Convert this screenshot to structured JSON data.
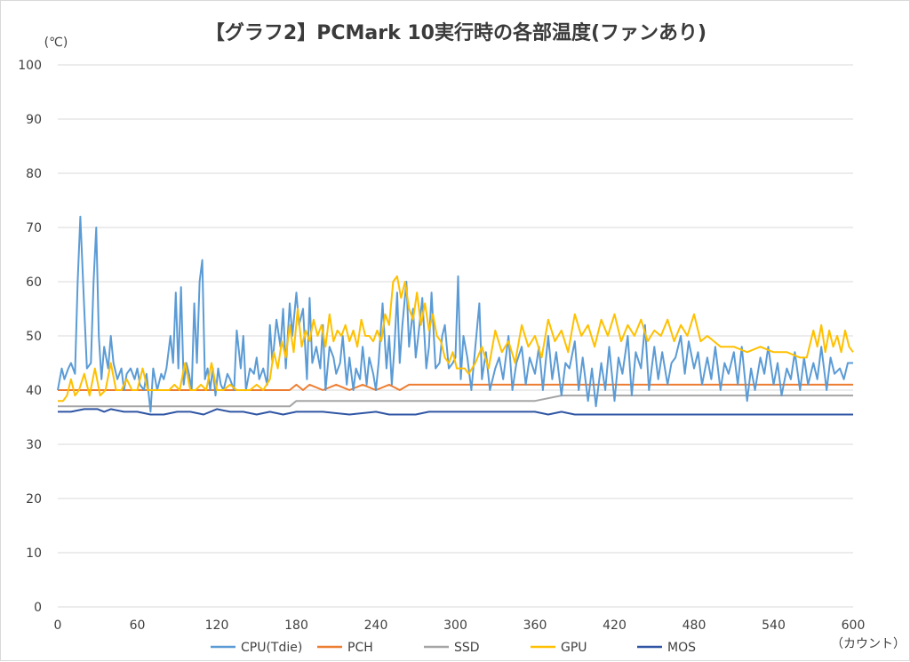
{
  "chart_data": {
    "type": "line",
    "title": "【グラフ2】PCMark 10実行時の各部温度(ファンあり)",
    "ylabel": "(℃)",
    "xlabel": "（カウント）",
    "ylim": [
      0,
      100
    ],
    "xlim": [
      0,
      600
    ],
    "y_ticks": [
      0,
      10,
      20,
      30,
      40,
      50,
      60,
      70,
      80,
      90,
      100
    ],
    "x_ticks": [
      0,
      60,
      120,
      180,
      240,
      300,
      360,
      420,
      480,
      540,
      600
    ],
    "grid": "horizontal",
    "legend_position": "bottom",
    "series": [
      {
        "name": "CPU(Tdie)",
        "color": "#5b9bd5",
        "x": [
          0,
          3,
          5,
          8,
          10,
          13,
          15,
          17,
          20,
          22,
          25,
          27,
          29,
          31,
          33,
          35,
          38,
          40,
          42,
          45,
          48,
          50,
          52,
          55,
          58,
          60,
          62,
          65,
          67,
          70,
          72,
          75,
          78,
          80,
          82,
          85,
          87,
          89,
          91,
          93,
          95,
          97,
          99,
          101,
          103,
          105,
          107,
          109,
          111,
          113,
          115,
          117,
          119,
          121,
          123,
          125,
          128,
          130,
          133,
          135,
          138,
          140,
          142,
          145,
          148,
          150,
          152,
          155,
          158,
          160,
          162,
          165,
          168,
          170,
          172,
          175,
          177,
          180,
          182,
          185,
          188,
          190,
          192,
          195,
          198,
          200,
          202,
          205,
          208,
          210,
          213,
          215,
          218,
          220,
          223,
          225,
          228,
          230,
          233,
          235,
          238,
          240,
          242,
          245,
          248,
          250,
          252,
          254,
          256,
          258,
          260,
          263,
          265,
          268,
          270,
          272,
          275,
          278,
          280,
          282,
          285,
          288,
          290,
          292,
          295,
          298,
          300,
          302,
          304,
          306,
          309,
          312,
          315,
          318,
          320,
          323,
          326,
          330,
          333,
          336,
          340,
          343,
          346,
          350,
          353,
          356,
          360,
          363,
          366,
          370,
          373,
          376,
          380,
          383,
          386,
          390,
          393,
          396,
          400,
          403,
          406,
          410,
          413,
          416,
          420,
          423,
          426,
          430,
          433,
          436,
          440,
          443,
          446,
          450,
          453,
          456,
          460,
          463,
          466,
          470,
          473,
          476,
          480,
          483,
          486,
          490,
          493,
          496,
          500,
          503,
          506,
          510,
          513,
          516,
          520,
          523,
          526,
          530,
          533,
          536,
          540,
          543,
          546,
          550,
          553,
          556,
          560,
          563,
          566,
          570,
          573,
          576,
          580,
          583,
          586,
          590,
          593,
          596,
          600
        ],
        "values": [
          40,
          44,
          42,
          44,
          45,
          43,
          60,
          72,
          55,
          44,
          45,
          60,
          70,
          50,
          42,
          48,
          44,
          50,
          45,
          42,
          44,
          40,
          43,
          44,
          42,
          44,
          41,
          40,
          43,
          36,
          44,
          40,
          43,
          42,
          44,
          50,
          45,
          58,
          44,
          59,
          41,
          45,
          43,
          40,
          56,
          45,
          60,
          64,
          42,
          44,
          40,
          44,
          39,
          44,
          41,
          40,
          43,
          42,
          40,
          51,
          44,
          50,
          40,
          44,
          43,
          46,
          42,
          44,
          41,
          52,
          45,
          53,
          48,
          55,
          44,
          56,
          50,
          58,
          52,
          55,
          42,
          57,
          45,
          48,
          44,
          52,
          40,
          48,
          46,
          43,
          45,
          50,
          41,
          46,
          40,
          44,
          42,
          48,
          41,
          46,
          43,
          40,
          45,
          56,
          44,
          50,
          41,
          48,
          58,
          45,
          52,
          60,
          48,
          55,
          46,
          50,
          57,
          44,
          48,
          58,
          44,
          45,
          50,
          52,
          44,
          45,
          46,
          61,
          42,
          50,
          46,
          40,
          48,
          56,
          42,
          47,
          40,
          44,
          46,
          42,
          50,
          40,
          45,
          48,
          41,
          46,
          43,
          48,
          40,
          50,
          42,
          47,
          39,
          45,
          44,
          49,
          40,
          46,
          38,
          44,
          37,
          45,
          40,
          48,
          38,
          46,
          43,
          50,
          39,
          47,
          44,
          52,
          40,
          48,
          42,
          47,
          41,
          45,
          46,
          50,
          43,
          49,
          44,
          47,
          41,
          46,
          42,
          48,
          40,
          45,
          43,
          47,
          41,
          48,
          38,
          44,
          40,
          46,
          43,
          48,
          41,
          45,
          39,
          44,
          42,
          47,
          40,
          46,
          41,
          45,
          42,
          48,
          40,
          46,
          43,
          44,
          42,
          45,
          45
        ]
      },
      {
        "name": "PCH",
        "color": "#ed7d31",
        "x": [
          0,
          60,
          120,
          160,
          175,
          180,
          185,
          190,
          200,
          210,
          220,
          230,
          240,
          250,
          258,
          265,
          300,
          360,
          420,
          480,
          540,
          600
        ],
        "values": [
          40,
          40,
          40,
          40,
          40,
          41,
          40,
          41,
          40,
          41,
          40,
          41,
          40,
          41,
          40,
          41,
          41,
          41,
          41,
          41,
          41,
          41
        ]
      },
      {
        "name": "SSD",
        "color": "#a5a5a5",
        "x": [
          0,
          60,
          120,
          130,
          140,
          175,
          180,
          240,
          260,
          300,
          320,
          360,
          380,
          420,
          480,
          540,
          600
        ],
        "values": [
          37,
          37,
          37,
          37,
          37,
          37,
          38,
          38,
          38,
          38,
          38,
          38,
          39,
          39,
          39,
          39,
          39
        ]
      },
      {
        "name": "GPU",
        "color": "#ffc000",
        "x": [
          0,
          4,
          7,
          10,
          13,
          16,
          20,
          24,
          28,
          32,
          36,
          40,
          44,
          48,
          52,
          56,
          60,
          64,
          68,
          72,
          76,
          80,
          84,
          88,
          92,
          96,
          100,
          104,
          108,
          112,
          116,
          120,
          125,
          130,
          135,
          140,
          145,
          150,
          155,
          160,
          163,
          166,
          169,
          172,
          175,
          178,
          181,
          184,
          187,
          190,
          193,
          196,
          199,
          202,
          205,
          208,
          211,
          214,
          217,
          220,
          223,
          226,
          229,
          232,
          235,
          238,
          241,
          244,
          247,
          250,
          253,
          256,
          259,
          262,
          265,
          268,
          271,
          274,
          277,
          280,
          283,
          286,
          289,
          292,
          295,
          298,
          301,
          304,
          307,
          310,
          315,
          320,
          325,
          330,
          335,
          340,
          345,
          350,
          355,
          360,
          365,
          370,
          375,
          380,
          385,
          390,
          395,
          400,
          405,
          410,
          415,
          420,
          425,
          430,
          435,
          440,
          445,
          450,
          455,
          460,
          465,
          470,
          475,
          480,
          485,
          490,
          495,
          500,
          510,
          520,
          530,
          540,
          550,
          560,
          565,
          570,
          573,
          576,
          579,
          582,
          585,
          588,
          591,
          594,
          597,
          600
        ],
        "values": [
          38,
          38,
          39,
          42,
          39,
          40,
          43,
          39,
          44,
          39,
          40,
          45,
          40,
          40,
          42,
          40,
          40,
          44,
          40,
          40,
          40,
          40,
          40,
          41,
          40,
          45,
          40,
          40,
          41,
          40,
          45,
          40,
          40,
          41,
          40,
          40,
          40,
          41,
          40,
          42,
          47,
          44,
          49,
          46,
          52,
          47,
          55,
          48,
          51,
          49,
          53,
          50,
          52,
          48,
          54,
          49,
          51,
          50,
          52,
          49,
          51,
          48,
          53,
          50,
          50,
          49,
          51,
          49,
          54,
          52,
          60,
          61,
          57,
          60,
          55,
          53,
          58,
          52,
          56,
          51,
          54,
          50,
          49,
          46,
          45,
          47,
          44,
          44,
          44,
          43,
          45,
          48,
          44,
          51,
          47,
          49,
          45,
          52,
          48,
          50,
          46,
          53,
          49,
          51,
          47,
          54,
          50,
          52,
          48,
          53,
          50,
          54,
          49,
          52,
          50,
          53,
          49,
          51,
          50,
          53,
          49,
          52,
          50,
          54,
          49,
          50,
          49,
          48,
          48,
          47,
          48,
          47,
          47,
          46,
          46,
          51,
          48,
          52,
          47,
          51,
          48,
          50,
          47,
          51,
          48,
          47
        ]
      },
      {
        "name": "MOS",
        "color": "#2f55a4",
        "x": [
          0,
          10,
          20,
          30,
          35,
          40,
          50,
          60,
          70,
          80,
          90,
          100,
          110,
          120,
          130,
          140,
          150,
          160,
          170,
          180,
          200,
          220,
          240,
          250,
          260,
          270,
          280,
          290,
          300,
          320,
          340,
          360,
          370,
          380,
          390,
          400,
          410,
          420,
          440,
          460,
          480,
          520,
          560,
          600
        ],
        "values": [
          36,
          36,
          36.5,
          36.5,
          36,
          36.5,
          36,
          36,
          35.5,
          35.5,
          36,
          36,
          35.5,
          36.5,
          36,
          36,
          35.5,
          36,
          35.5,
          36,
          36,
          35.5,
          36,
          35.5,
          35.5,
          35.5,
          36,
          36,
          36,
          36,
          36,
          36,
          35.5,
          36,
          35.5,
          35.5,
          35.5,
          35.5,
          35.5,
          35.5,
          35.5,
          35.5,
          35.5,
          35.5
        ]
      }
    ]
  }
}
